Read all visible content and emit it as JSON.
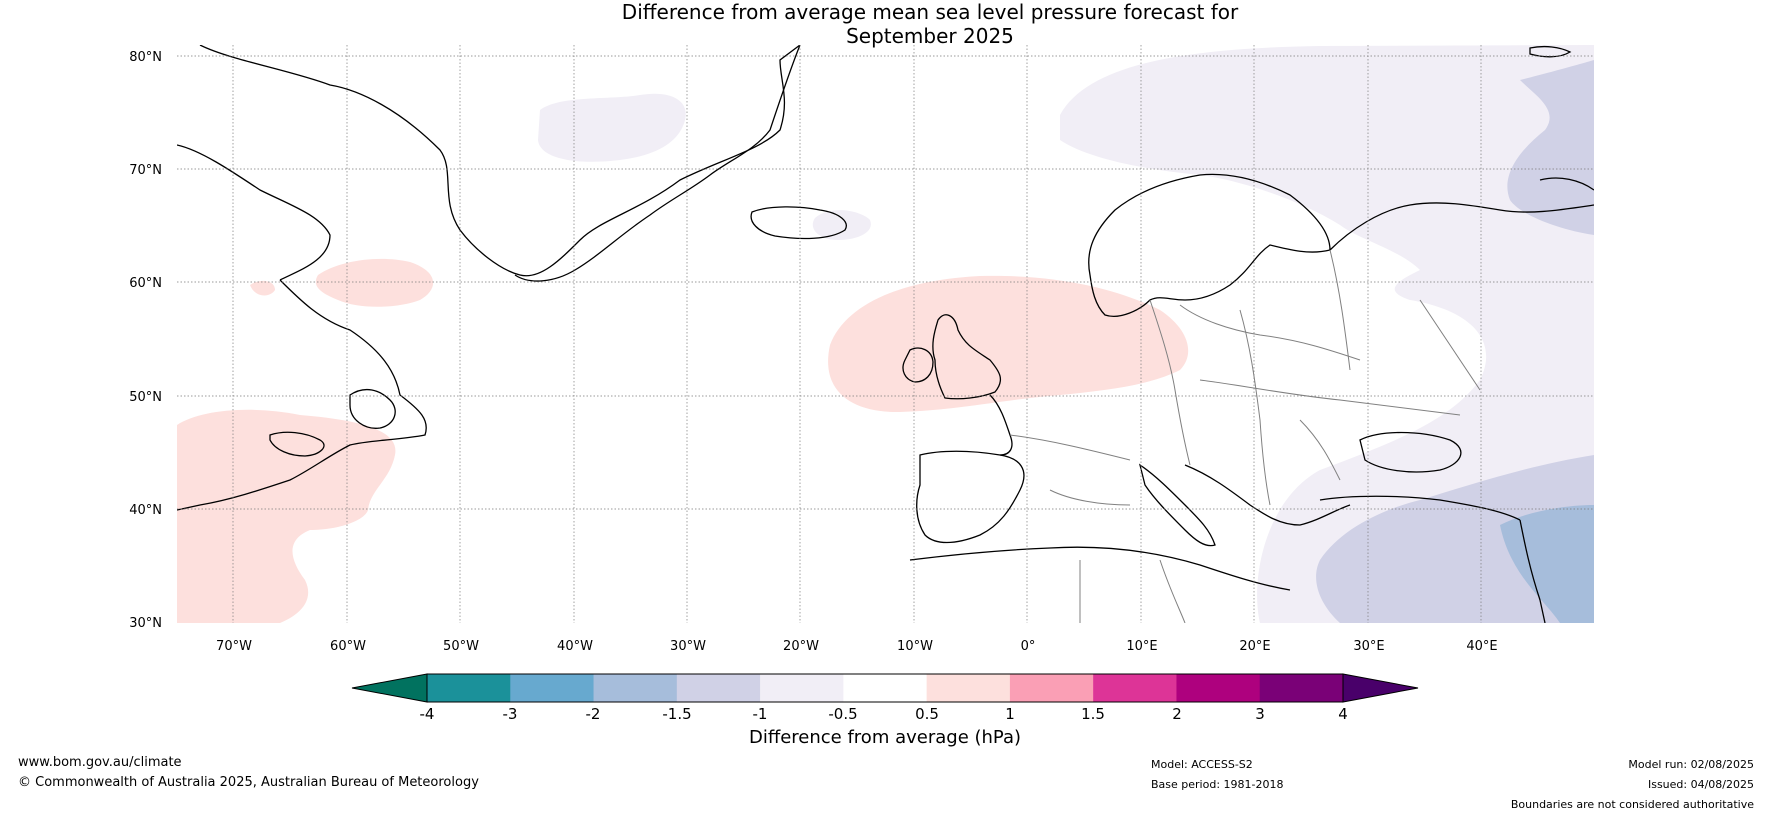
{
  "title": {
    "line1": "Difference from average mean sea level pressure forecast for",
    "line2": "September 2025"
  },
  "map": {
    "lat_labels": [
      "80°N",
      "70°N",
      "60°N",
      "50°N",
      "40°N",
      "30°N"
    ],
    "lon_labels": [
      "70°W",
      "60°W",
      "50°W",
      "40°W",
      "30°W",
      "20°W",
      "10°W",
      "0°",
      "10°E",
      "20°E",
      "30°E",
      "40°E"
    ],
    "extent": {
      "lon": [
        -75,
        50
      ],
      "lat": [
        30,
        81
      ]
    },
    "colors": {
      "land_outline": "#000000",
      "border": "#808080",
      "grid": "#7a7a7a"
    }
  },
  "colorbar": {
    "title": "Difference from average (hPa)",
    "ticks": [
      "-4",
      "-3",
      "-2",
      "-1.5",
      "-1",
      "-0.5",
      "0.5",
      "1",
      "1.5",
      "2",
      "3",
      "4"
    ],
    "colors": [
      "#01725f",
      "#1b919a",
      "#67a9cf",
      "#a6bddb",
      "#d0d1e6",
      "#f1eef6",
      "#ffffff",
      "#fde0dd",
      "#fa9fb5",
      "#dd3497",
      "#ae017e",
      "#7a0177",
      "#49006a"
    ]
  },
  "footer": {
    "website": "www.bom.gov.au/climate",
    "copyright": "© Commonwealth of Australia 2025, Australian Bureau of Meteorology",
    "model": "Model: ACCESS-S2",
    "base_period": "Base period: 1981-2018",
    "model_run": "Model run: 02/08/2025",
    "issued": "Issued: 04/08/2025",
    "disclaimer": "Boundaries are not considered authoritative"
  }
}
